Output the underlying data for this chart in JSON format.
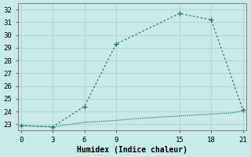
{
  "xlabel": "Humidex (Indice chaleur)",
  "line1_x": [
    0,
    3,
    6,
    9,
    15,
    18,
    21
  ],
  "line1_y": [
    22.9,
    22.8,
    24.4,
    29.3,
    31.7,
    31.2,
    24.1
  ],
  "line2_x": [
    0,
    3,
    6,
    9,
    10,
    11,
    12,
    13,
    14,
    15,
    16,
    17,
    18,
    19,
    20,
    21
  ],
  "line2_y": [
    22.9,
    22.8,
    23.15,
    23.3,
    23.38,
    23.45,
    23.5,
    23.55,
    23.6,
    23.65,
    23.7,
    23.75,
    23.8,
    23.85,
    23.9,
    24.05
  ],
  "line_color": "#2a7d6e",
  "bg_color": "#c8ebe8",
  "grid_color": "#b0d8d4",
  "xlim": [
    -0.3,
    21.3
  ],
  "ylim": [
    22.5,
    32.5
  ],
  "xticks": [
    0,
    3,
    6,
    9,
    15,
    18,
    21
  ],
  "yticks": [
    23,
    24,
    25,
    26,
    27,
    28,
    29,
    30,
    31,
    32
  ],
  "marker": "+"
}
